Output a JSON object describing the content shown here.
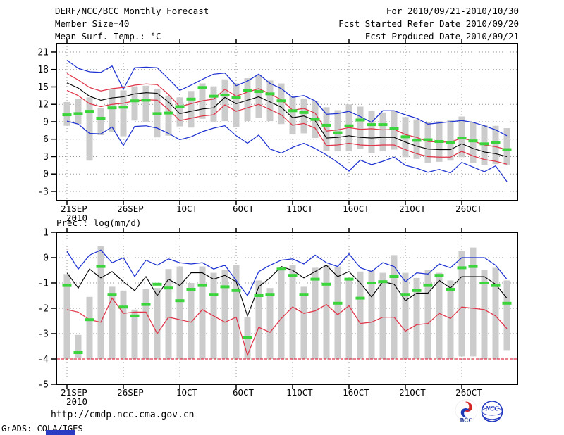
{
  "header": {
    "title": "DERF/NCC/BCC Monthly Forecast",
    "member_size": "Member Size=40",
    "variable_label": "Mean Surf. Temp.: °C",
    "valid_range": "For 2010/09/21-2010/10/30",
    "refer_date": "Fcst Started Refer Date 2010/09/20",
    "produced_date": "Fcst Produced Date 2010/09/21"
  },
  "second_panel_label": "Prec.: log(mm/d)",
  "footer": {
    "url": "http://cmdp.ncc.cma.gov.cn",
    "credit": "GrADS: COLA/IGES",
    "logo_bcc": "BCC",
    "logo_ncc": "NCC"
  },
  "colors": {
    "blue": "#1e32d2",
    "red": "#e03448",
    "black": "#000000",
    "green": "#3cd43c",
    "bar": "#cccccc",
    "grid": "#999999"
  },
  "chart_data": [
    {
      "type": "line",
      "panel": "temperature",
      "title": "Mean Surf. Temp.: °C",
      "x": {
        "n_days": 40,
        "start_date": "2010/09/21",
        "tick_days": [
          1,
          6,
          11,
          16,
          21,
          26,
          31,
          36
        ],
        "tick_labels": [
          "21SEP",
          "26SEP",
          "1OCT",
          "6OCT",
          "11OCT",
          "16OCT",
          "21OCT",
          "26OCT"
        ],
        "year_label": "2010"
      },
      "ylim": [
        -3,
        21
      ],
      "yticks": [
        21,
        18,
        15,
        12,
        9,
        6,
        3,
        0,
        -3
      ],
      "grid": true,
      "bars": {
        "label": "climatology-spread",
        "ranges": [
          [
            8.3,
            12.4
          ],
          [
            8.6,
            13.0
          ],
          [
            2.3,
            13.2
          ],
          [
            6.7,
            11.4
          ],
          [
            7.2,
            14.6
          ],
          [
            6.5,
            14.4
          ],
          [
            9.2,
            15.1
          ],
          [
            9.0,
            15.2
          ],
          [
            6.3,
            14.7
          ],
          [
            6.6,
            13.5
          ],
          [
            8.2,
            13.2
          ],
          [
            8.0,
            14.3
          ],
          [
            9.5,
            15.6
          ],
          [
            9.0,
            15.1
          ],
          [
            9.1,
            16.3
          ],
          [
            8.1,
            15.6
          ],
          [
            9.1,
            16.5
          ],
          [
            9.6,
            17.1
          ],
          [
            9.1,
            16.1
          ],
          [
            8.6,
            15.6
          ],
          [
            6.8,
            13.4
          ],
          [
            7.0,
            13.0
          ],
          [
            6.2,
            12.6
          ],
          [
            4.0,
            11.5
          ],
          [
            3.9,
            11.0
          ],
          [
            3.9,
            12.0
          ],
          [
            4.3,
            11.6
          ],
          [
            3.6,
            10.9
          ],
          [
            3.9,
            10.6
          ],
          [
            4.2,
            10.9
          ],
          [
            2.9,
            9.8
          ],
          [
            2.6,
            9.4
          ],
          [
            1.9,
            9.0
          ],
          [
            2.1,
            9.1
          ],
          [
            2.3,
            9.3
          ],
          [
            2.9,
            9.9
          ],
          [
            1.9,
            9.0
          ],
          [
            1.6,
            8.4
          ],
          [
            1.7,
            8.3
          ],
          [
            1.5,
            7.9
          ]
        ]
      },
      "markers": {
        "label": "observation",
        "values": [
          10.2,
          10.4,
          10.8,
          9.6,
          11.4,
          11.5,
          12.6,
          12.7,
          10.4,
          10.5,
          11.6,
          12.9,
          14.9,
          13.4,
          13.6,
          13.2,
          14.4,
          14.2,
          13.8,
          12.6,
          10.9,
          10.6,
          9.4,
          8.4,
          7.1,
          8.3,
          9.3,
          8.5,
          8.5,
          7.8,
          6.4,
          5.8,
          5.9,
          5.6,
          5.4,
          6.2,
          5.7,
          5.2,
          5.4,
          4.2
        ]
      },
      "series": [
        {
          "name": "ensemble-max",
          "color_key": "blue",
          "values": [
            19.6,
            18.2,
            17.6,
            17.5,
            18.6,
            14.6,
            18.3,
            18.4,
            18.3,
            16.4,
            14.4,
            15.3,
            16.3,
            17.2,
            17.4,
            15.2,
            16.0,
            17.2,
            15.6,
            14.7,
            13.2,
            13.5,
            12.6,
            10.3,
            10.4,
            10.8,
            9.9,
            8.9,
            10.9,
            10.9,
            10.2,
            9.6,
            8.6,
            8.8,
            9.0,
            9.2,
            8.9,
            8.3,
            7.6,
            6.6
          ]
        },
        {
          "name": "plus-sigma",
          "color_key": "red",
          "values": [
            17.3,
            16.2,
            14.9,
            14.3,
            14.7,
            14.9,
            15.3,
            15.5,
            15.4,
            13.7,
            11.6,
            12.1,
            12.6,
            12.9,
            14.6,
            13.4,
            14.1,
            14.7,
            13.8,
            12.8,
            11.0,
            11.3,
            10.5,
            7.4,
            7.6,
            8.0,
            7.7,
            7.8,
            7.6,
            7.7,
            6.8,
            6.3,
            5.6,
            5.5,
            5.5,
            6.2,
            5.7,
            5.0,
            4.7,
            4.2
          ]
        },
        {
          "name": "ensemble-mean",
          "color_key": "black",
          "values": [
            15.7,
            14.8,
            13.4,
            12.7,
            13.1,
            13.3,
            13.8,
            14.0,
            13.9,
            12.4,
            10.4,
            10.8,
            11.2,
            11.4,
            13.2,
            12.1,
            12.7,
            13.3,
            12.4,
            11.5,
            9.7,
            10.0,
            9.2,
            6.2,
            6.3,
            6.6,
            6.3,
            6.2,
            6.3,
            6.3,
            5.5,
            4.8,
            4.3,
            4.2,
            4.2,
            5.2,
            4.4,
            3.8,
            3.5,
            3.0
          ]
        },
        {
          "name": "minus-sigma",
          "color_key": "red",
          "values": [
            14.4,
            13.5,
            12.1,
            11.6,
            12.0,
            12.2,
            12.6,
            12.8,
            12.7,
            11.1,
            9.2,
            9.6,
            10.0,
            10.2,
            11.9,
            10.8,
            11.4,
            12.0,
            11.1,
            10.2,
            8.4,
            8.7,
            7.9,
            4.9,
            5.0,
            5.3,
            5.0,
            4.9,
            5.0,
            5.0,
            4.2,
            3.5,
            3.0,
            2.9,
            2.9,
            3.9,
            3.1,
            2.5,
            2.2,
            1.7
          ]
        },
        {
          "name": "ensemble-min",
          "color_key": "blue",
          "values": [
            9.1,
            8.6,
            7.0,
            6.9,
            8.1,
            4.9,
            8.2,
            8.3,
            7.9,
            7.0,
            5.9,
            6.4,
            7.3,
            7.9,
            8.3,
            6.6,
            5.3,
            6.7,
            4.3,
            3.6,
            4.6,
            5.3,
            4.4,
            3.3,
            2.0,
            0.5,
            2.4,
            1.6,
            2.2,
            2.9,
            1.5,
            1.0,
            0.3,
            0.8,
            0.2,
            2.0,
            1.2,
            0.4,
            1.4,
            -1.3
          ]
        }
      ]
    },
    {
      "type": "line",
      "panel": "precipitation",
      "title": "Prec.: log(mm/d)",
      "x": {
        "n_days": 40,
        "start_date": "2010/09/21",
        "tick_days": [
          1,
          6,
          11,
          16,
          21,
          26,
          31,
          36
        ],
        "tick_labels": [
          "21SEP",
          "26SEP",
          "1OCT",
          "6OCT",
          "11OCT",
          "16OCT",
          "21OCT",
          "26OCT"
        ],
        "year_label": "2010"
      },
      "ylim": [
        -5,
        1
      ],
      "yticks": [
        1,
        0,
        -1,
        -2,
        -3,
        -4,
        -5
      ],
      "grid": true,
      "floor_line": {
        "value": -4,
        "color_key": "red"
      },
      "bars": {
        "label": "climatology-spread",
        "ranges": [
          [
            -4,
            -0.65
          ],
          [
            -3.95,
            -3.05
          ],
          [
            -4,
            -1.55
          ],
          [
            -4,
            0.45
          ],
          [
            -4,
            -1.15
          ],
          [
            -4,
            -1.3
          ],
          [
            -4,
            -2.05
          ],
          [
            -4,
            -1.25
          ],
          [
            -4,
            -1.2
          ],
          [
            -4,
            -0.45
          ],
          [
            -4,
            -0.35
          ],
          [
            -4,
            -1.0
          ],
          [
            -4,
            -0.35
          ],
          [
            -4,
            -0.6
          ],
          [
            -4,
            -0.5
          ],
          [
            -4,
            -0.3
          ],
          [
            -4,
            -2.35
          ],
          [
            -4,
            -0.9
          ],
          [
            -4,
            -1.2
          ],
          [
            -4,
            -0.4
          ],
          [
            -4,
            -0.3
          ],
          [
            -4,
            -1.15
          ],
          [
            -4,
            -0.4
          ],
          [
            -4,
            -0.3
          ],
          [
            -4,
            -0.35
          ],
          [
            -4,
            -0.9
          ],
          [
            -4,
            -0.55
          ],
          [
            -4,
            -0.5
          ],
          [
            -4,
            -0.6
          ],
          [
            -4,
            0.1
          ],
          [
            -4,
            -0.6
          ],
          [
            -4,
            -0.8
          ],
          [
            -4,
            -0.5
          ],
          [
            -4,
            -0.6
          ],
          [
            -4,
            -0.9
          ],
          [
            -3.9,
            0.25
          ],
          [
            -3.9,
            0.4
          ],
          [
            -4,
            -0.5
          ],
          [
            -4,
            -0.4
          ],
          [
            -3.65,
            -0.9
          ]
        ]
      },
      "markers": {
        "label": "observation",
        "values": [
          -1.1,
          -3.75,
          -2.45,
          -0.35,
          -1.45,
          -1.95,
          -2.3,
          -1.85,
          -1.05,
          -1.2,
          -1.7,
          -1.25,
          -1.1,
          -1.45,
          -1.15,
          -1.3,
          -3.15,
          -1.5,
          -1.45,
          -0.45,
          -0.7,
          -1.45,
          -0.85,
          -1.05,
          -1.8,
          -0.85,
          -1.6,
          -1.0,
          -0.95,
          -0.75,
          -1.45,
          -1.3,
          -1.1,
          -0.7,
          -1.25,
          -0.4,
          -0.35,
          -1.0,
          -1.1,
          -1.8
        ]
      },
      "series": [
        {
          "name": "ensemble-max",
          "color_key": "blue",
          "values": [
            0.25,
            -0.45,
            0.1,
            0.3,
            -0.2,
            0.0,
            -0.75,
            -0.1,
            -0.3,
            -0.05,
            -0.2,
            -0.25,
            -0.2,
            -0.45,
            -0.3,
            -0.9,
            -1.5,
            -0.55,
            -0.3,
            -0.1,
            -0.05,
            -0.25,
            0.1,
            -0.2,
            -0.35,
            0.15,
            -0.4,
            -0.55,
            -0.2,
            -0.35,
            -0.95,
            -0.6,
            -0.65,
            -0.25,
            -0.4,
            0.0,
            0.0,
            0.0,
            -0.3,
            -0.85
          ]
        },
        {
          "name": "ensemble-mean",
          "color_key": "black",
          "values": [
            -0.6,
            -1.2,
            -0.45,
            -0.8,
            -0.55,
            -0.95,
            -1.3,
            -0.75,
            -1.5,
            -0.85,
            -1.1,
            -0.6,
            -0.6,
            -0.85,
            -0.7,
            -0.95,
            -2.3,
            -1.15,
            -0.8,
            -0.35,
            -0.5,
            -0.8,
            -0.55,
            -0.3,
            -0.75,
            -0.55,
            -1.0,
            -1.55,
            -0.95,
            -1.05,
            -1.7,
            -1.4,
            -1.4,
            -0.9,
            -1.2,
            -0.75,
            -0.75,
            -0.75,
            -1.05,
            -1.6
          ]
        },
        {
          "name": "ensemble-min",
          "color_key": "red",
          "values": [
            -2.05,
            -2.15,
            -2.45,
            -2.55,
            -1.6,
            -2.2,
            -2.15,
            -2.15,
            -3.0,
            -2.35,
            -2.45,
            -2.55,
            -2.05,
            -2.3,
            -2.55,
            -2.35,
            -3.85,
            -2.75,
            -2.95,
            -2.4,
            -1.95,
            -2.2,
            -2.1,
            -1.85,
            -2.25,
            -1.9,
            -2.6,
            -2.55,
            -2.35,
            -2.35,
            -2.9,
            -2.65,
            -2.6,
            -2.2,
            -2.4,
            -1.95,
            -2.0,
            -2.05,
            -2.3,
            -2.8
          ]
        }
      ]
    }
  ]
}
